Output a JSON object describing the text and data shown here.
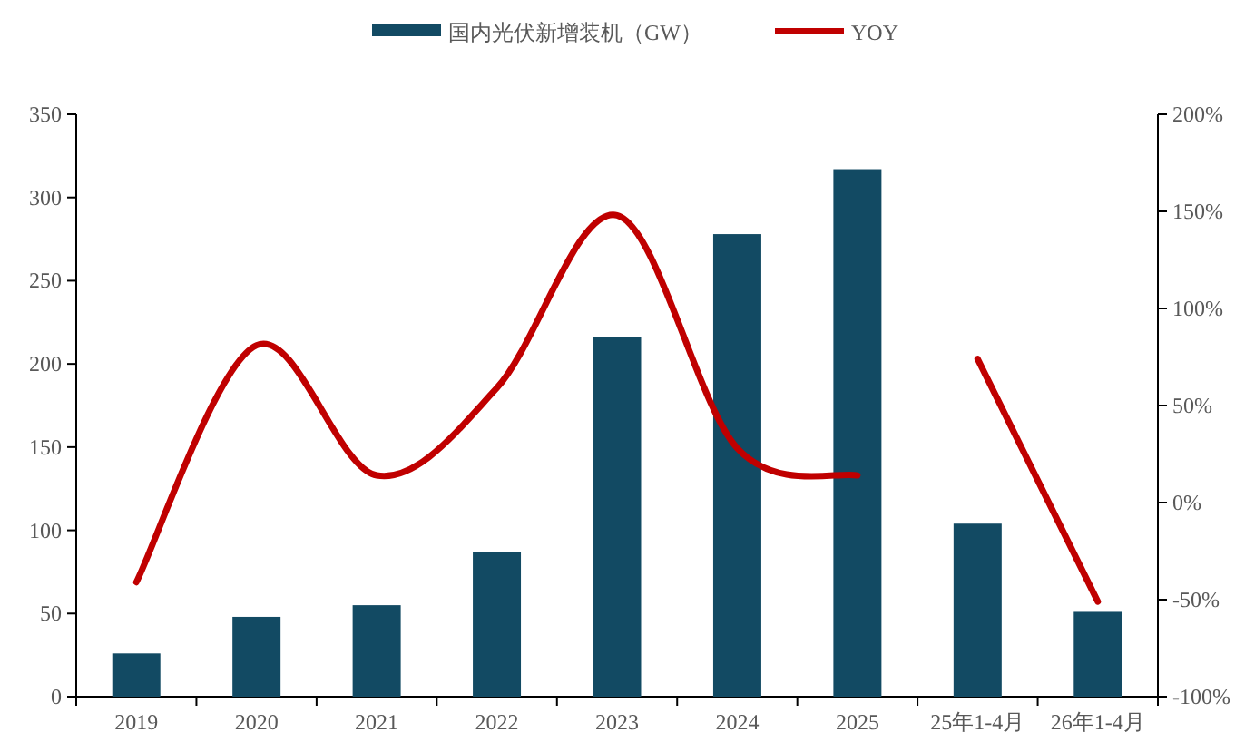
{
  "chart_data": {
    "type": "bar",
    "categories": [
      "2019",
      "2020",
      "2021",
      "2022",
      "2023",
      "2024",
      "2025",
      "25年1-4月",
      "26年1-4月"
    ],
    "series": [
      {
        "name": "国内光伏新增装机（GW）",
        "color": "#124a63",
        "values": [
          26,
          48,
          55,
          87,
          216,
          278,
          317,
          104,
          51
        ]
      },
      {
        "name": "YOY",
        "type": "line",
        "axis": "y2",
        "color": "#c00000",
        "values": [
          -41,
          81,
          14,
          59,
          148,
          28,
          14,
          null,
          null
        ]
      },
      {
        "type": "line",
        "axis": "y2",
        "color": "#c00000",
        "values": [
          null,
          null,
          null,
          null,
          null,
          null,
          null,
          74,
          -51
        ]
      }
    ],
    "ylim": [
      0,
      350
    ],
    "yticks": [
      0,
      50,
      100,
      150,
      200,
      250,
      300,
      350
    ],
    "y2lim": [
      -100,
      200
    ],
    "y2ticks": [
      {
        "value": -100,
        "label": "-100%"
      },
      {
        "value": -50,
        "label": "-50%"
      },
      {
        "value": 0,
        "label": "0%"
      },
      {
        "value": 50,
        "label": "50%"
      },
      {
        "value": 100,
        "label": "100%"
      },
      {
        "value": 150,
        "label": "150%"
      },
      {
        "value": 200,
        "label": "200%"
      }
    ],
    "grid": false,
    "legend": "top",
    "marker": "none",
    "line_style": "solid"
  }
}
